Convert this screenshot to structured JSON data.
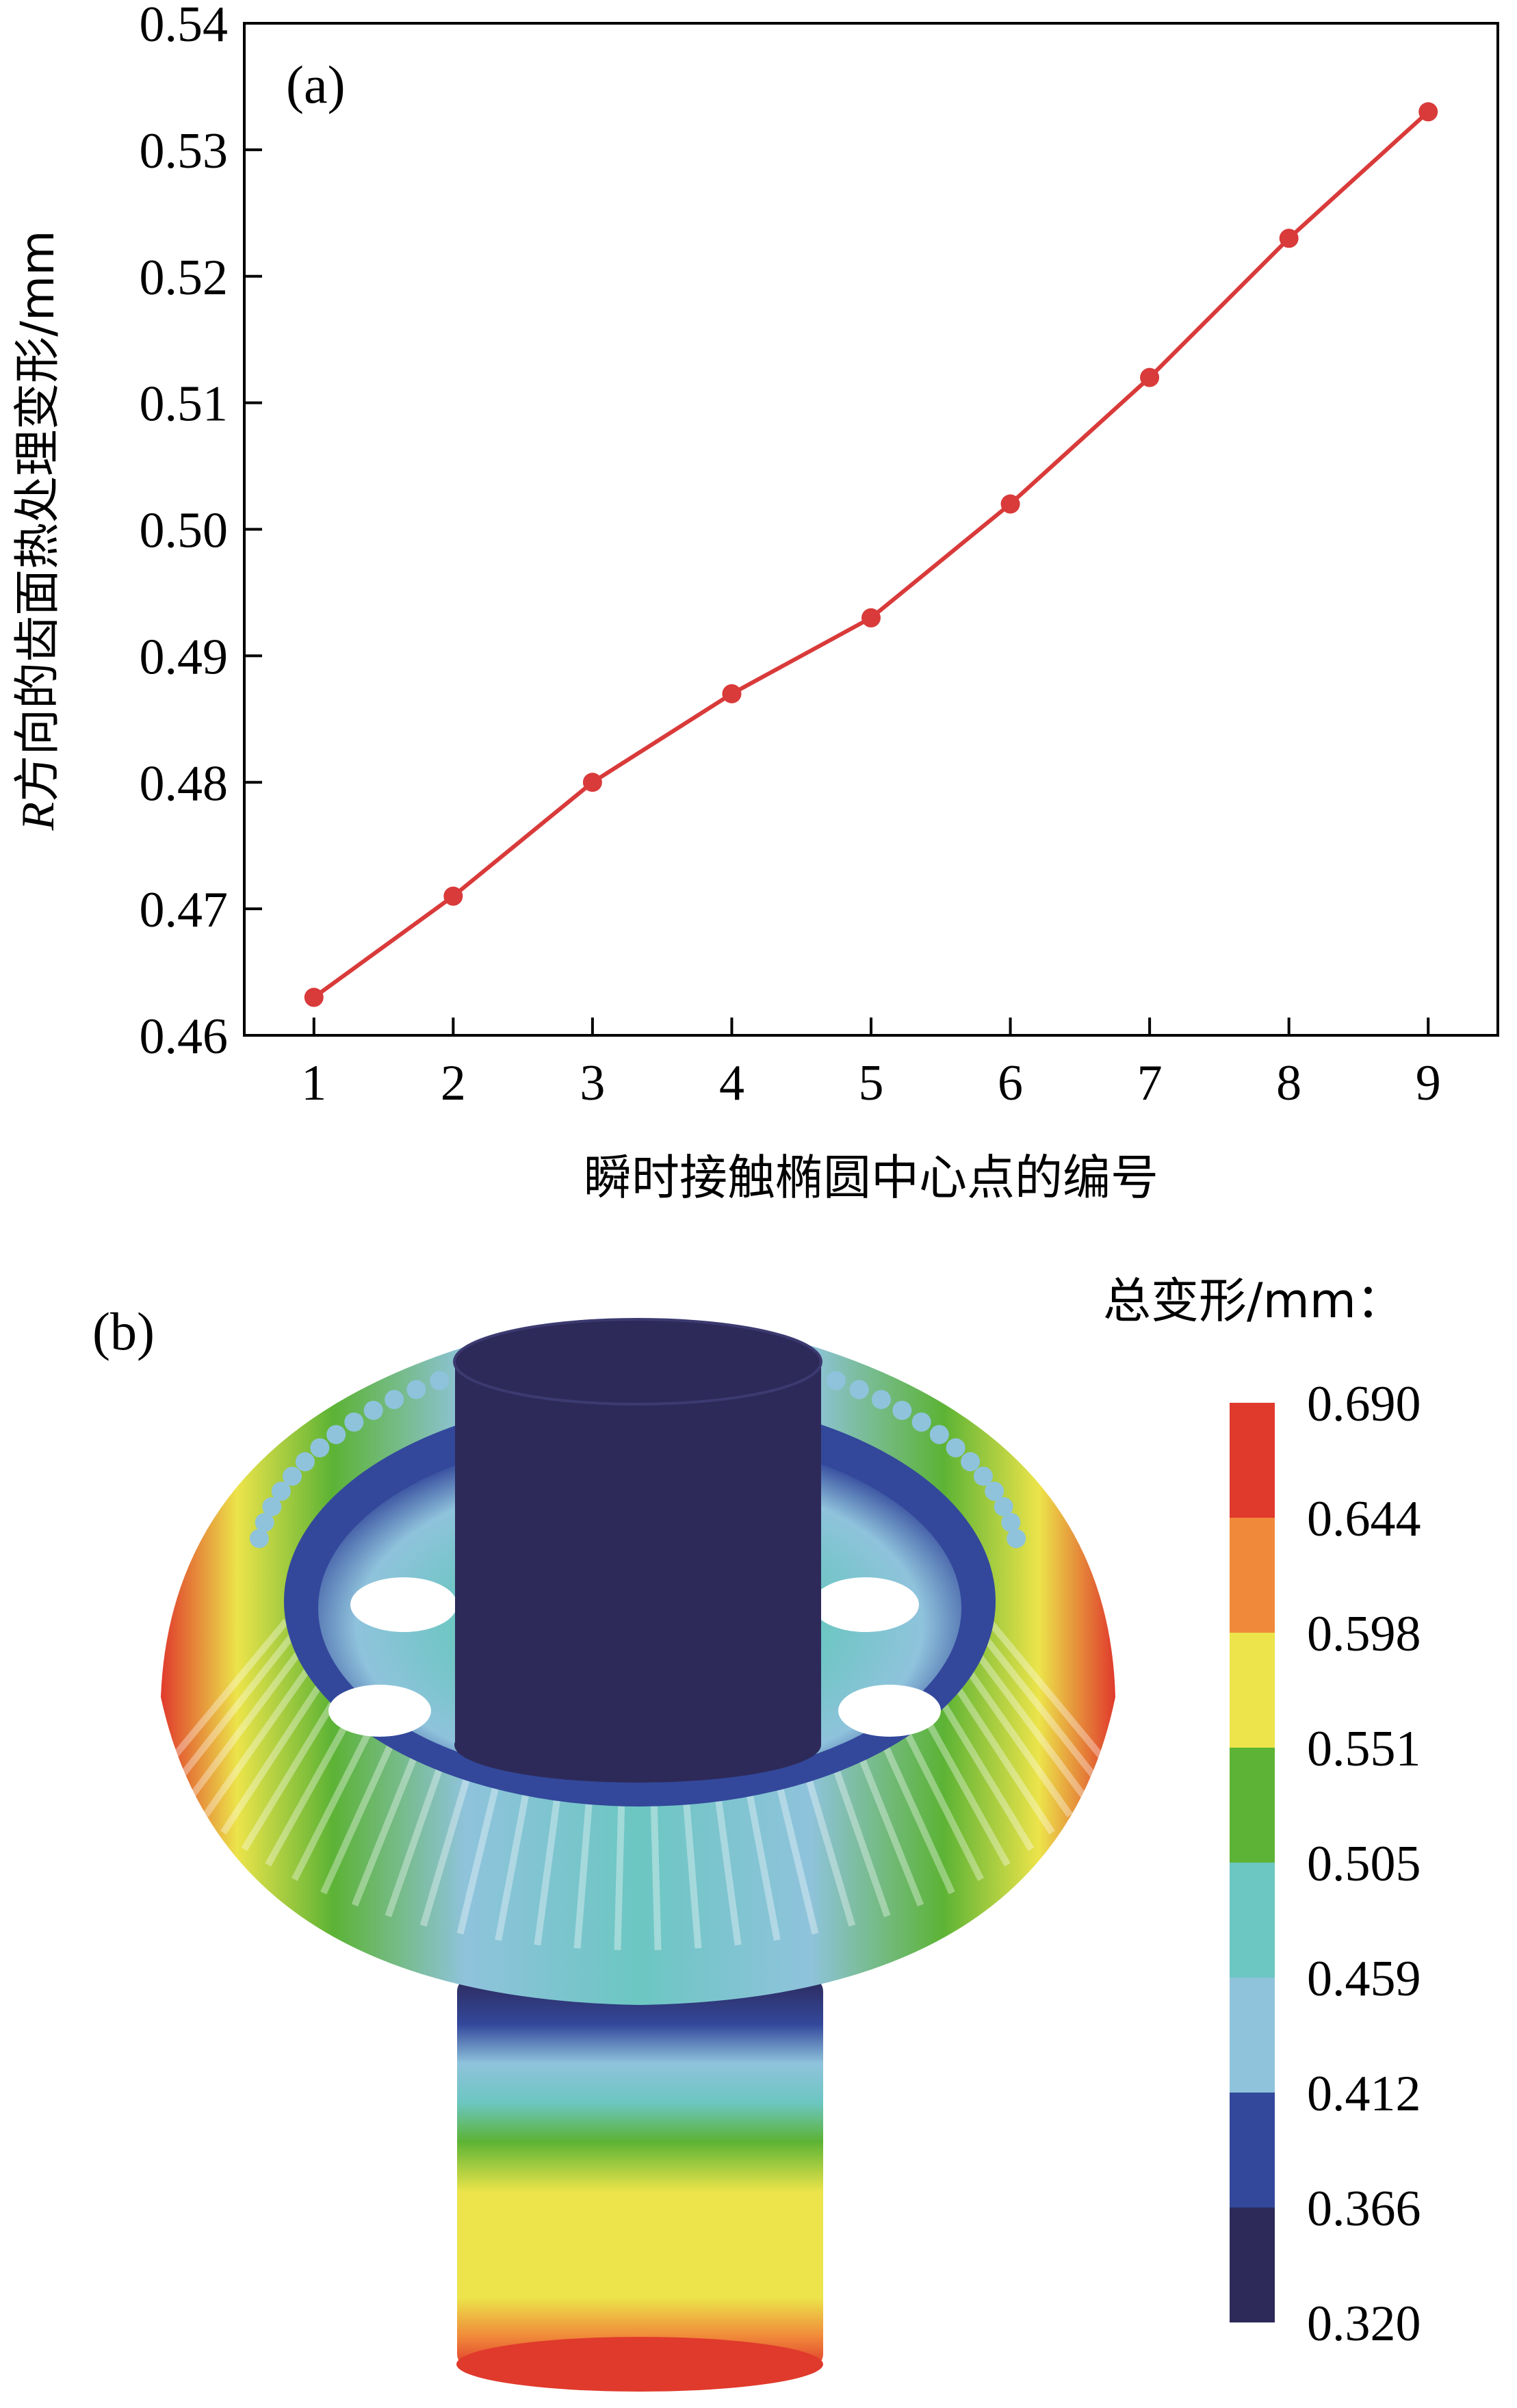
{
  "panel_a": {
    "label": "(a)",
    "ylabel_italic": "R",
    "ylabel_rest": "方向的齿面热处理变形/mm",
    "xlabel": "瞬时接触椭圆中心点的编号"
  },
  "panel_b": {
    "label": "(b)",
    "legend_title": "总变形/mm：",
    "colorbar": [
      {
        "value": "0.690",
        "color": "#e03a2c"
      },
      {
        "value": "0.644",
        "color": "#f08a3a"
      },
      {
        "value": "0.598",
        "color": "#ece44a"
      },
      {
        "value": "0.551",
        "color": "#5cb335"
      },
      {
        "value": "0.505",
        "color": "#6cc6c2"
      },
      {
        "value": "0.459",
        "color": "#8fc3dc"
      },
      {
        "value": "0.412",
        "color": "#33489b"
      },
      {
        "value": "0.366",
        "color": "#2d2a5a"
      },
      {
        "value": "0.320",
        "color": ""
      }
    ]
  },
  "chart_data": {
    "type": "line",
    "title": "",
    "xlabel": "瞬时接触椭圆中心点的编号",
    "ylabel": "R方向的齿面热处理变形/mm",
    "x": [
      1,
      2,
      3,
      4,
      5,
      6,
      7,
      8,
      9
    ],
    "series": [
      {
        "values": [
          0.463,
          0.471,
          0.48,
          0.487,
          0.493,
          0.502,
          0.512,
          0.523,
          0.533
        ],
        "color": "#d93a3a"
      }
    ],
    "xlim": [
      0.5,
      9.5
    ],
    "ylim": [
      0.46,
      0.54
    ],
    "xticks": [
      "1",
      "2",
      "3",
      "4",
      "5",
      "6",
      "7",
      "8",
      "9"
    ],
    "yticks": [
      "0.46",
      "0.47",
      "0.48",
      "0.49",
      "0.50",
      "0.51",
      "0.52",
      "0.53",
      "0.54"
    ],
    "grid": false,
    "marker": "circle"
  },
  "colors": {
    "line": "#d93a3a",
    "axis": "#000000"
  }
}
